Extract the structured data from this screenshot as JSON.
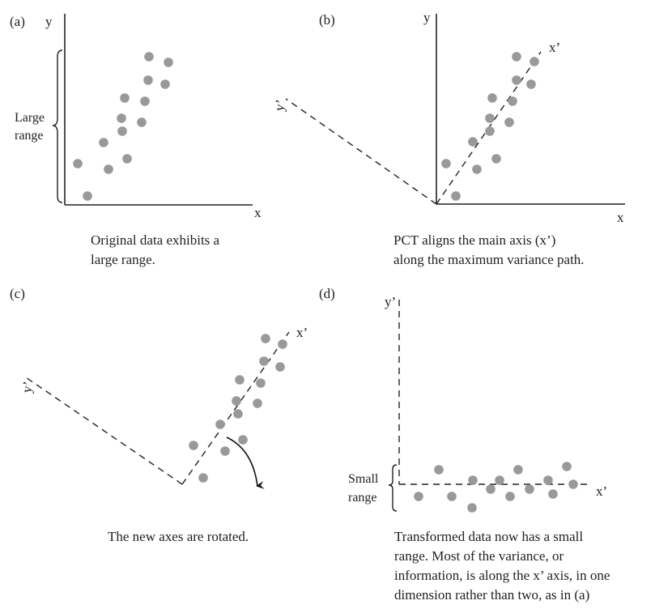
{
  "style": {
    "point_color": "#999999",
    "line_color": "#222222"
  },
  "panels": {
    "a": {
      "letter": "(a)",
      "y_axis": "y",
      "x_axis": "x",
      "brace_label": [
        "Large",
        "range"
      ],
      "caption": [
        "Original data exhibits a",
        "large range."
      ]
    },
    "b": {
      "letter": "(b)",
      "y_axis": "y",
      "x_axis": "x",
      "x_prime": "x’",
      "y_prime": "y’",
      "caption": [
        "PCT aligns the main axis (x’)",
        "along the maximum variance path."
      ]
    },
    "c": {
      "letter": "(c)",
      "x_prime": "x’",
      "y_prime": "y’",
      "caption": [
        "The new axes are rotated."
      ]
    },
    "d": {
      "letter": "(d)",
      "y_prime": "y’",
      "x_prime": "x’",
      "brace_label": [
        "Small",
        "range"
      ],
      "caption": [
        "Transformed data now has a small",
        "range. Most of the variance, or",
        "information, is along the x’ axis, in one",
        "dimension rather than two, as in (a)"
      ]
    }
  }
}
